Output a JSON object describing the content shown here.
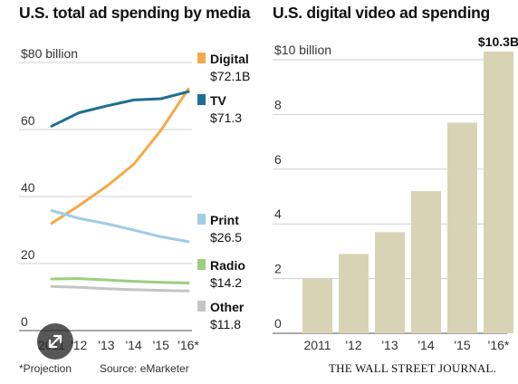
{
  "chart_data": [
    {
      "type": "line",
      "title": "U.S. total ad spending by media",
      "xlabel": "",
      "ylabel": "",
      "x": [
        "2011",
        "'12",
        "'13",
        "'14",
        "'15",
        "'16*"
      ],
      "x_display": [
        "2011",
        "'12",
        "'13",
        "'14",
        "'15",
        "'16*"
      ],
      "ylim": [
        0,
        80
      ],
      "y_ticks": [
        {
          "value": 0,
          "label": "0"
        },
        {
          "value": 20,
          "label": "20"
        },
        {
          "value": 40,
          "label": "40"
        },
        {
          "value": 60,
          "label": "60"
        },
        {
          "value": 80,
          "label": "$80 billion"
        }
      ],
      "grid": true,
      "legend": "right",
      "series": [
        {
          "name": "Digital",
          "color": "#f5a94a",
          "end_label": "$72.1B",
          "values": [
            32.0,
            37.3,
            43.0,
            49.6,
            59.8,
            72.1
          ]
        },
        {
          "name": "TV",
          "color": "#1e7090",
          "end_label": "$71.3",
          "values": [
            61.0,
            65.0,
            67.0,
            68.8,
            69.2,
            71.3
          ]
        },
        {
          "name": "Print",
          "color": "#9fcde3",
          "end_label": "$26.5",
          "values": [
            35.8,
            33.5,
            31.9,
            30.0,
            28.0,
            26.5
          ]
        },
        {
          "name": "Radio",
          "color": "#9bcf7e",
          "end_label": "$14.2",
          "values": [
            15.4,
            15.5,
            15.1,
            14.7,
            14.4,
            14.2
          ]
        },
        {
          "name": "Other",
          "color": "#c4c4c4",
          "end_label": "$11.8",
          "values": [
            13.2,
            12.9,
            12.5,
            12.2,
            12.0,
            11.8
          ]
        }
      ]
    },
    {
      "type": "bar",
      "title": "U.S. digital video ad spending",
      "xlabel": "",
      "ylabel": "",
      "categories": [
        "2011",
        "'12",
        "'13",
        "'14",
        "'15",
        "'16*"
      ],
      "values": [
        2.0,
        2.9,
        3.7,
        5.2,
        7.7,
        10.3
      ],
      "bar_color": "#d8d3b4",
      "ylim": [
        0,
        10
      ],
      "y_ticks": [
        {
          "value": 0,
          "label": "0"
        },
        {
          "value": 2,
          "label": "2"
        },
        {
          "value": 4,
          "label": "4"
        },
        {
          "value": 6,
          "label": "6"
        },
        {
          "value": 8,
          "label": "8"
        },
        {
          "value": 10,
          "label": "$10 billion"
        }
      ],
      "grid": true,
      "data_labels": [
        null,
        null,
        null,
        null,
        null,
        "$10.3B"
      ]
    }
  ],
  "footer": {
    "projection_note": "*Projection",
    "source": "Source: eMarketer",
    "publisher": "THE WALL STREET JOURNAL."
  },
  "controls": {
    "expand_icon": "expand-arrows-icon"
  }
}
